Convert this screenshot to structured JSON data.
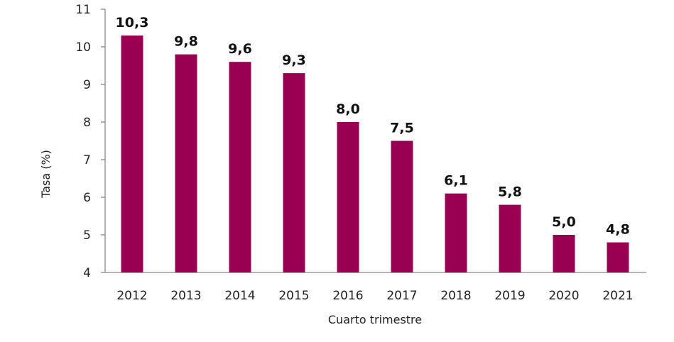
{
  "chart_data": {
    "type": "bar",
    "title": "",
    "xlabel": "Cuarto trimestre",
    "ylabel": "Tasa (%)",
    "ylim": [
      4,
      11
    ],
    "yticks": [
      "4",
      "5",
      "6",
      "7",
      "8",
      "9",
      "10",
      "11"
    ],
    "categories": [
      "2012",
      "2013",
      "2014",
      "2015",
      "2016",
      "2017",
      "2018",
      "2019",
      "2020",
      "2021"
    ],
    "values": [
      10.3,
      9.8,
      9.6,
      9.3,
      8.0,
      7.5,
      6.1,
      5.8,
      5.0,
      4.8
    ],
    "data_labels": [
      "10,3",
      "9,8",
      "9,6",
      "9,3",
      "8,0",
      "7,5",
      "6,1",
      "5,8",
      "5,0",
      "4,8"
    ],
    "bar_color": "#990051",
    "grid": false
  }
}
